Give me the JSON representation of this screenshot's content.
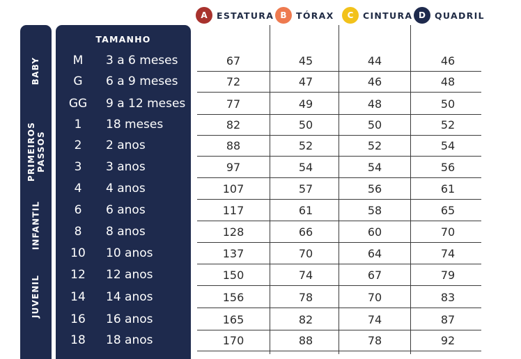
{
  "legend": [
    {
      "letter": "A",
      "label": "ESTATURA",
      "color": "#a8322d"
    },
    {
      "letter": "B",
      "label": "TÓRAX",
      "color": "#ee7a4f"
    },
    {
      "letter": "C",
      "label": "CINTURA",
      "color": "#f2c21b"
    },
    {
      "letter": "D",
      "label": "QUADRIL",
      "color": "#1e2a4d"
    }
  ],
  "categories": [
    {
      "label": "BABY"
    },
    {
      "label": "PRIMEIROS\nPASSOS"
    },
    {
      "label": "INFANTIL"
    },
    {
      "label": "JUVENIL"
    }
  ],
  "size_heading": "TAMANHO",
  "rows": [
    {
      "size": "M",
      "age": "3 a 6 meses",
      "estatura": "67",
      "torax": "45",
      "cintura": "44",
      "quadril": "46"
    },
    {
      "size": "G",
      "age": "6 a 9 meses",
      "estatura": "72",
      "torax": "47",
      "cintura": "46",
      "quadril": "48"
    },
    {
      "size": "GG",
      "age": "9 a 12 meses",
      "estatura": "77",
      "torax": "49",
      "cintura": "48",
      "quadril": "50"
    },
    {
      "size": "1",
      "age": "18 meses",
      "estatura": "82",
      "torax": "50",
      "cintura": "50",
      "quadril": "52"
    },
    {
      "size": "2",
      "age": "2 anos",
      "estatura": "88",
      "torax": "52",
      "cintura": "52",
      "quadril": "54"
    },
    {
      "size": "3",
      "age": "3 anos",
      "estatura": "97",
      "torax": "54",
      "cintura": "54",
      "quadril": "56"
    },
    {
      "size": "4",
      "age": "4 anos",
      "estatura": "107",
      "torax": "57",
      "cintura": "56",
      "quadril": "61"
    },
    {
      "size": "6",
      "age": "6 anos",
      "estatura": "117",
      "torax": "61",
      "cintura": "58",
      "quadril": "65"
    },
    {
      "size": "8",
      "age": "8 anos",
      "estatura": "128",
      "torax": "66",
      "cintura": "60",
      "quadril": "70"
    },
    {
      "size": "10",
      "age": "10 anos",
      "estatura": "137",
      "torax": "70",
      "cintura": "64",
      "quadril": "74"
    },
    {
      "size": "12",
      "age": "12 anos",
      "estatura": "150",
      "torax": "74",
      "cintura": "67",
      "quadril": "79"
    },
    {
      "size": "14",
      "age": "14 anos",
      "estatura": "156",
      "torax": "78",
      "cintura": "70",
      "quadril": "83"
    },
    {
      "size": "16",
      "age": "16 anos",
      "estatura": "165",
      "torax": "82",
      "cintura": "74",
      "quadril": "87"
    },
    {
      "size": "18",
      "age": "18 anos",
      "estatura": "170",
      "torax": "88",
      "cintura": "78",
      "quadril": "92"
    }
  ]
}
